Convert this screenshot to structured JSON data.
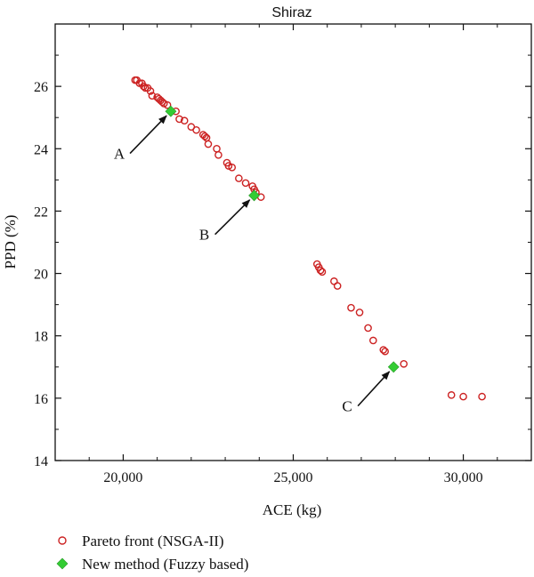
{
  "chart_data": {
    "type": "scatter",
    "title": "Shiraz",
    "xlabel": "ACE (kg)",
    "ylabel": "PPD (%)",
    "xlim": [
      18000,
      32000
    ],
    "ylim": [
      14,
      28
    ],
    "x_ticks": [
      20000,
      25000,
      30000
    ],
    "x_tick_labels": [
      "20,000",
      "25,000",
      "30,000"
    ],
    "y_ticks": [
      14,
      16,
      18,
      20,
      22,
      24,
      26
    ],
    "y_tick_labels": [
      "14",
      "16",
      "18",
      "20",
      "22",
      "24",
      "26"
    ],
    "grid": false,
    "legend_position": "bottom-left",
    "colors": {
      "pareto": "#cc2222",
      "fuzzy": "#33cc33",
      "axis": "#111111"
    },
    "series": [
      {
        "name": "Pareto front (NSGA-II)",
        "marker": "open-circle",
        "points": [
          [
            20350,
            26.2
          ],
          [
            20400,
            26.2
          ],
          [
            20480,
            26.1
          ],
          [
            20550,
            26.1
          ],
          [
            20600,
            26.0
          ],
          [
            20650,
            25.95
          ],
          [
            20720,
            25.95
          ],
          [
            20800,
            25.85
          ],
          [
            20850,
            25.7
          ],
          [
            21000,
            25.65
          ],
          [
            21050,
            25.6
          ],
          [
            21100,
            25.55
          ],
          [
            21150,
            25.5
          ],
          [
            21200,
            25.45
          ],
          [
            21300,
            25.4
          ],
          [
            21550,
            25.2
          ],
          [
            21650,
            24.95
          ],
          [
            21800,
            24.9
          ],
          [
            22000,
            24.7
          ],
          [
            22150,
            24.6
          ],
          [
            22350,
            24.45
          ],
          [
            22400,
            24.4
          ],
          [
            22450,
            24.35
          ],
          [
            22500,
            24.15
          ],
          [
            22750,
            24.0
          ],
          [
            22800,
            23.8
          ],
          [
            23050,
            23.55
          ],
          [
            23100,
            23.45
          ],
          [
            23200,
            23.4
          ],
          [
            23400,
            23.05
          ],
          [
            23600,
            22.9
          ],
          [
            23800,
            22.8
          ],
          [
            23850,
            22.7
          ],
          [
            23900,
            22.6
          ],
          [
            24050,
            22.45
          ],
          [
            25700,
            20.3
          ],
          [
            25750,
            20.2
          ],
          [
            25800,
            20.1
          ],
          [
            25850,
            20.05
          ],
          [
            26200,
            19.75
          ],
          [
            26300,
            19.6
          ],
          [
            26700,
            18.9
          ],
          [
            26950,
            18.75
          ],
          [
            27200,
            18.25
          ],
          [
            27350,
            17.85
          ],
          [
            27650,
            17.55
          ],
          [
            27700,
            17.5
          ],
          [
            28250,
            17.1
          ],
          [
            29650,
            16.1
          ],
          [
            30000,
            16.05
          ],
          [
            30550,
            16.05
          ]
        ]
      },
      {
        "name": "New method (Fuzzy based)",
        "marker": "filled-diamond",
        "points": [
          [
            21400,
            25.2
          ],
          [
            23850,
            22.5
          ],
          [
            27950,
            17.0
          ]
        ]
      }
    ],
    "annotations": [
      {
        "label": "A",
        "target": [
          21400,
          25.2
        ],
        "text_at": [
          20200,
          23.85
        ]
      },
      {
        "label": "B",
        "target": [
          23850,
          22.5
        ],
        "text_at": [
          22700,
          21.25
        ]
      },
      {
        "label": "C",
        "target": [
          27950,
          17.0
        ],
        "text_at": [
          26900,
          15.75
        ]
      }
    ]
  }
}
